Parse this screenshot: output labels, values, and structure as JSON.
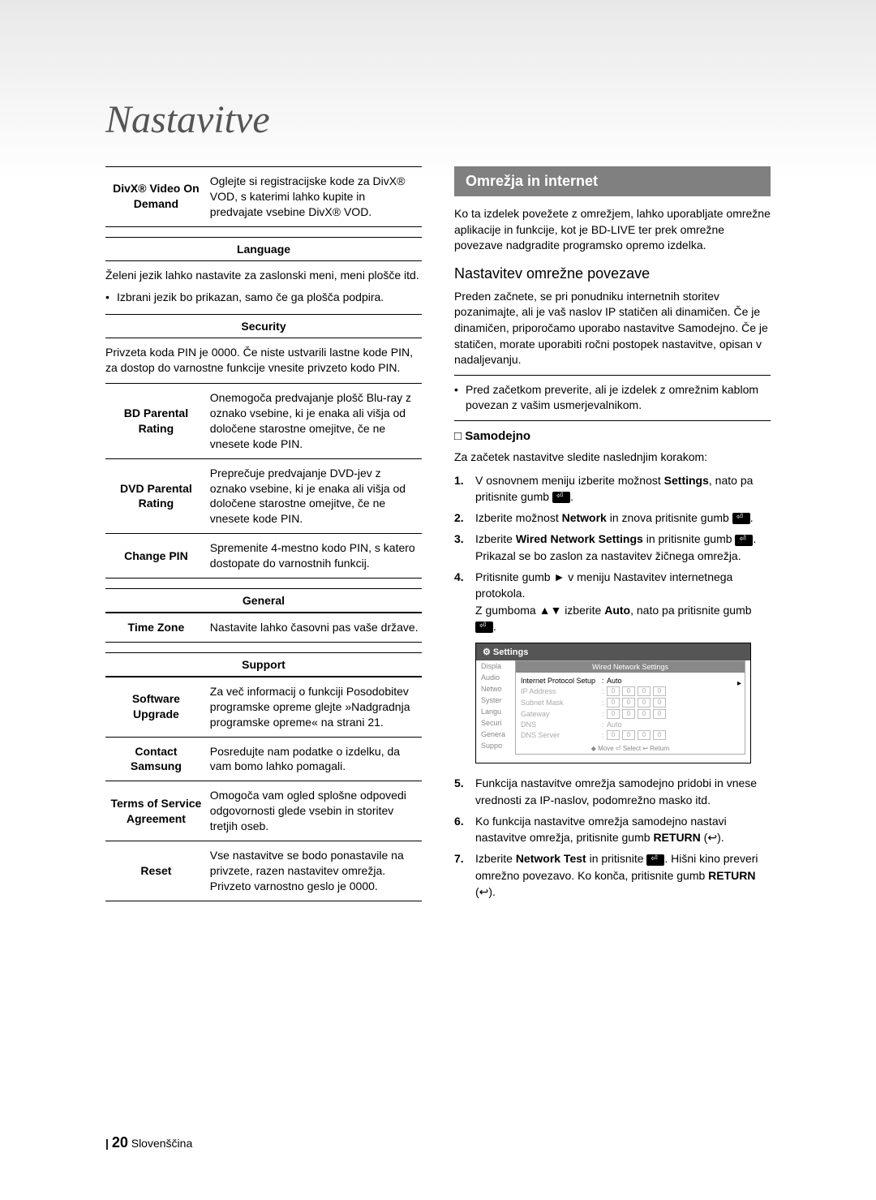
{
  "chapter_title": "Nastavitve",
  "left": {
    "divx": {
      "key": "DivX® Video On Demand",
      "val": "Oglejte si registracijske kode za DivX® VOD, s katerimi lahko kupite in predvajate vsebine DivX® VOD."
    },
    "language_head": "Language",
    "language_body": "Želeni jezik lahko nastavite za zaslonski meni, meni plošče itd.",
    "language_bullet": "Izbrani jezik bo prikazan, samo če ga plošča podpira.",
    "security_head": "Security",
    "security_body": "Privzeta koda PIN je 0000. Če niste ustvarili lastne kode PIN, za dostop do varnostne funkcije vnesite privzeto kodo PIN.",
    "security_rows": [
      {
        "key": "BD Parental Rating",
        "val": "Onemogoča predvajanje plošč Blu-ray z oznako vsebine, ki je enaka ali višja od določene starostne omejitve, če ne vnesete kode PIN."
      },
      {
        "key": "DVD Parental Rating",
        "val": "Preprečuje predvajanje DVD-jev z oznako vsebine, ki je enaka ali višja od določene starostne omejitve, če ne vnesete kode PIN."
      },
      {
        "key": "Change PIN",
        "val": "Spremenite 4-mestno kodo PIN, s katero dostopate do varnostnih funkcij."
      }
    ],
    "general_head": "General",
    "general_row": {
      "key": "Time Zone",
      "val": "Nastavite lahko časovni pas vaše države."
    },
    "support_head": "Support",
    "support_rows": [
      {
        "key": "Software Upgrade",
        "val": "Za več informacij o funkciji Posodobitev programske opreme glejte »Nadgradnja programske opreme« na strani 21."
      },
      {
        "key": "Contact Samsung",
        "val": "Posredujte nam podatke o izdelku, da vam bomo lahko pomagali."
      },
      {
        "key": "Terms of Service Agreement",
        "val": "Omogoča vam ogled splošne odpovedi odgovornosti glede vsebin in storitev tretjih oseb."
      },
      {
        "key": "Reset",
        "val": "Vse nastavitve se bodo ponastavile na privzete, razen nastavitev omrežja. Privzeto varnostno geslo je 0000."
      }
    ]
  },
  "right": {
    "section_title": "Omrežja in internet",
    "intro": "Ko ta izdelek povežete z omrežjem, lahko uporabljate omrežne aplikacije in funkcije, kot je BD-LIVE ter prek omrežne povezave nadgradite programsko opremo izdelka.",
    "sub_title": "Nastavitev omrežne povezave",
    "sub_body": "Preden začnete, se pri ponudniku internetnih storitev pozanimajte, ali je vaš naslov IP statičen ali dinamičen. Če je dinamičen, priporočamo uporabo nastavitve Samodejno. Če je statičen, morate uporabiti ročni postopek nastavitve, opisan v nadaljevanju.",
    "sub_bullet": "Pred začetkom preverite, ali je izdelek z omrežnim kablom povezan z vašim usmerjevalnikom.",
    "samodejno": "Samodejno",
    "samodejno_intro": "Za začetek nastavitve sledite naslednjim korakom:",
    "steps_a": [
      "V osnovnem meniju izberite možnost <b>Settings</b>, nato pa pritisnite gumb <ICON>.",
      "Izberite možnost <b>Network</b> in znova pritisnite gumb <ICON>.",
      "Izberite <b>Wired Network Settings</b> in pritisnite gumb <ICON>. Prikazal se bo zaslon za nastavitev žičnega omrežja.",
      "Pritisnite gumb ► v meniju Nastavitev internetnega protokola.<br>Z gumboma ▲▼ izberite <b>Auto</b>, nato pa pritisnite gumb <ICON>."
    ],
    "steps_b": [
      "Funkcija nastavitve omrežja samodejno pridobi in vnese vrednosti za IP-naslov, podomrežno masko itd.",
      "Ko funkcija nastavitve omrežja samodejno nastavi nastavitve omrežja, pritisnite gumb <b>RETURN</b> <RET>.",
      "Izberite <b>Network Test</b> in pritisnite <ICON>. Hišni kino preveri omrežno povezavo. Ko konča, pritisnite gumb <b>RETURN</b> <RET>."
    ],
    "screenshot": {
      "title": "Settings",
      "sidebar": [
        "Displa",
        "Audio",
        "Netwo",
        "Syster",
        "Langu",
        "Securi",
        "Genera",
        "Suppo"
      ],
      "panel_title": "Wired Network Settings",
      "rows": [
        {
          "label": "Internet Protocol Setup",
          "val": "Auto",
          "active": true,
          "boxes": 0
        },
        {
          "label": "IP Address",
          "val": "",
          "boxes": 4
        },
        {
          "label": "Subnet Mask",
          "val": "",
          "boxes": 4
        },
        {
          "label": "Gateway",
          "val": "",
          "boxes": 4
        },
        {
          "label": "DNS",
          "val": "Auto",
          "boxes": 0
        },
        {
          "label": "DNS Server",
          "val": "",
          "boxes": 4
        }
      ],
      "footer": "◆ Move   ⏎ Select   ↩ Return"
    }
  },
  "footer": {
    "page": "20",
    "lang": "Slovenščina"
  }
}
